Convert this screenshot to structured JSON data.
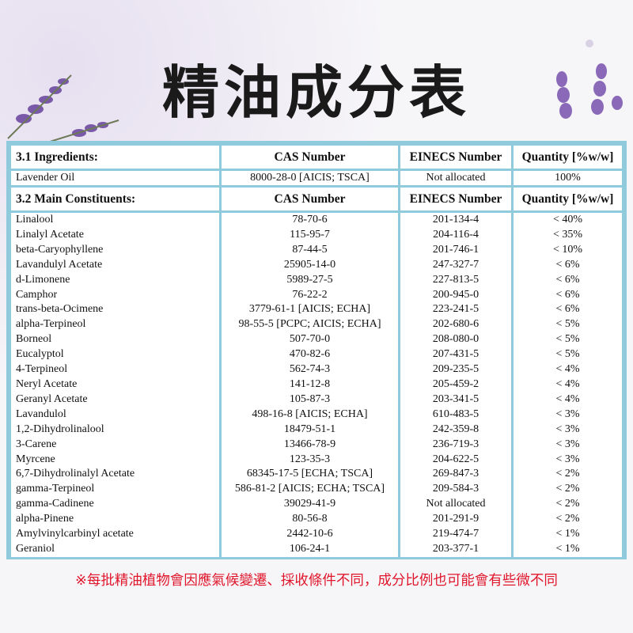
{
  "title": "精油成分表",
  "ingredients_header": {
    "label": "3.1 Ingredients:",
    "cas": "CAS Number",
    "einecs": "EINECS Number",
    "quantity": "Quantity [%w/w]"
  },
  "ingredient": {
    "name": "Lavender Oil",
    "cas": "8000-28-0 [AICIS; TSCA]",
    "einecs": "Not allocated",
    "quantity": "100%"
  },
  "constituents_header": {
    "label": "3.2 Main Constituents:",
    "cas": "CAS Number",
    "einecs": "EINECS Number",
    "quantity": "Quantity [%w/w]"
  },
  "constituents": [
    {
      "name": "Linalool",
      "cas": "78-70-6",
      "einecs": "201-134-4",
      "quantity": "< 40%"
    },
    {
      "name": "Linalyl Acetate",
      "cas": "115-95-7",
      "einecs": "204-116-4",
      "quantity": "< 35%"
    },
    {
      "name": "beta-Caryophyllene",
      "cas": "87-44-5",
      "einecs": "201-746-1",
      "quantity": "< 10%"
    },
    {
      "name": "Lavandulyl Acetate",
      "cas": "25905-14-0",
      "einecs": "247-327-7",
      "quantity": "< 6%"
    },
    {
      "name": "d-Limonene",
      "cas": "5989-27-5",
      "einecs": "227-813-5",
      "quantity": "< 6%"
    },
    {
      "name": "Camphor",
      "cas": "76-22-2",
      "einecs": "200-945-0",
      "quantity": "< 6%"
    },
    {
      "name": "trans-beta-Ocimene",
      "cas": "3779-61-1 [AICIS; ECHA]",
      "einecs": "223-241-5",
      "quantity": "< 6%"
    },
    {
      "name": "alpha-Terpineol",
      "cas": "98-55-5 [PCPC; AICIS; ECHA]",
      "einecs": "202-680-6",
      "quantity": "< 5%"
    },
    {
      "name": "Borneol",
      "cas": "507-70-0",
      "einecs": "208-080-0",
      "quantity": "< 5%"
    },
    {
      "name": "Eucalyptol",
      "cas": "470-82-6",
      "einecs": "207-431-5",
      "quantity": "< 5%"
    },
    {
      "name": "4-Terpineol",
      "cas": "562-74-3",
      "einecs": "209-235-5",
      "quantity": "< 4%"
    },
    {
      "name": "Neryl Acetate",
      "cas": "141-12-8",
      "einecs": "205-459-2",
      "quantity": "< 4%"
    },
    {
      "name": "Geranyl Acetate",
      "cas": "105-87-3",
      "einecs": "203-341-5",
      "quantity": "< 4%"
    },
    {
      "name": "Lavandulol",
      "cas": "498-16-8 [AICIS; ECHA]",
      "einecs": "610-483-5",
      "quantity": "< 3%"
    },
    {
      "name": "1,2-Dihydrolinalool",
      "cas": "18479-51-1",
      "einecs": "242-359-8",
      "quantity": "< 3%"
    },
    {
      "name": "3-Carene",
      "cas": "13466-78-9",
      "einecs": "236-719-3",
      "quantity": "< 3%"
    },
    {
      "name": "Myrcene",
      "cas": "123-35-3",
      "einecs": "204-622-5",
      "quantity": "< 3%"
    },
    {
      "name": "6,7-Dihydrolinalyl Acetate",
      "cas": "68345-17-5 [ECHA; TSCA]",
      "einecs": "269-847-3",
      "quantity": "< 2%"
    },
    {
      "name": "gamma-Terpineol",
      "cas": "586-81-2 [AICIS; ECHA; TSCA]",
      "einecs": "209-584-3",
      "quantity": "< 2%"
    },
    {
      "name": "gamma-Cadinene",
      "cas": "39029-41-9",
      "einecs": "Not allocated",
      "quantity": "< 2%"
    },
    {
      "name": "alpha-Pinene",
      "cas": "80-56-8",
      "einecs": "201-291-9",
      "quantity": "< 2%"
    },
    {
      "name": "Amylvinylcarbinyl acetate",
      "cas": "2442-10-6",
      "einecs": "219-474-7",
      "quantity": "< 1%"
    },
    {
      "name": "Geraniol",
      "cas": "106-24-1",
      "einecs": "203-377-1",
      "quantity": "< 1%"
    }
  ],
  "note": "※每批精油植物會因應氣候變遷、採收條件不同，成分比例也可能會有些微不同",
  "colors": {
    "border": "#8fcbdc",
    "note": "#e0162b",
    "lavender": "#7a5aa8"
  }
}
